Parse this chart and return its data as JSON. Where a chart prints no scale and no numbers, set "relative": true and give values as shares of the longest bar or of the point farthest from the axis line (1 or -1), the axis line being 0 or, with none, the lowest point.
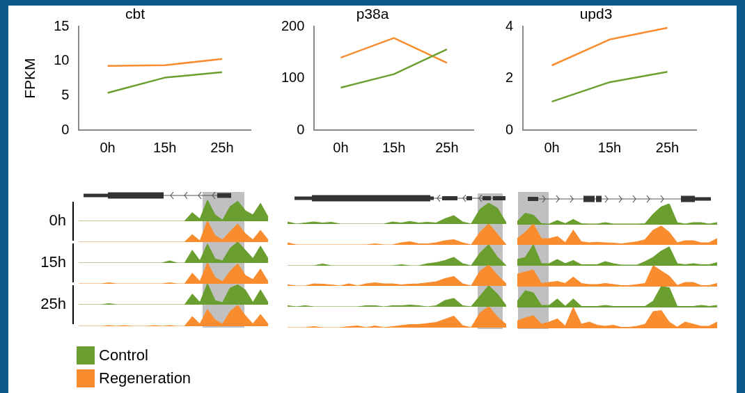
{
  "chart_data": [
    {
      "type": "line",
      "title": "cbt",
      "ylabel": "FPKM",
      "categories": [
        "0h",
        "15h",
        "25h"
      ],
      "ylim": [
        0,
        15
      ],
      "yticks": [
        0,
        5,
        10,
        15
      ],
      "legend": "bottom left",
      "series": [
        {
          "name": "Control",
          "color": "#6a9e2f",
          "values": [
            5.4,
            7.6,
            8.4
          ]
        },
        {
          "name": "Regeneration",
          "color": "#f98c2e",
          "values": [
            9.3,
            9.4,
            10.3
          ]
        }
      ]
    },
    {
      "type": "line",
      "title": "p38a",
      "categories": [
        "0h",
        "15h",
        "25h"
      ],
      "ylim": [
        0,
        200
      ],
      "yticks": [
        0,
        100,
        200
      ],
      "series": [
        {
          "color": "#6a9e2f",
          "values": [
            82,
            108,
            156
          ]
        },
        {
          "color": "#f98c2e",
          "values": [
            140,
            178,
            130
          ]
        }
      ]
    },
    {
      "type": "line",
      "title": "upd3",
      "categories": [
        "0h",
        "15h",
        "25h"
      ],
      "ylim": [
        0,
        4
      ],
      "yticks": [
        0,
        2,
        4
      ],
      "series": [
        {
          "color": "#6a9e2f",
          "values": [
            1.1,
            1.85,
            2.25
          ]
        },
        {
          "color": "#f98c2e",
          "values": [
            2.5,
            3.5,
            3.95
          ]
        }
      ]
    },
    {
      "type": "area",
      "relative": true,
      "tick_labels": false,
      "ylabel": "0h",
      "categories": [
        null,
        null,
        null,
        null,
        null,
        null,
        null,
        null,
        null,
        null,
        null,
        null,
        null,
        null,
        null,
        null,
        null,
        null,
        null,
        null,
        null,
        null,
        null,
        null,
        null,
        null
      ],
      "series": [
        {
          "color": "#6a9e2f",
          "values": [
            0,
            0,
            0,
            0,
            0,
            0,
            0,
            0,
            0,
            0,
            0,
            0,
            0,
            0,
            0,
            0.4,
            0.1,
            1,
            0.3,
            0.05,
            0.7,
            0.95,
            0.5,
            0.3,
            0.85,
            0.2
          ]
        }
      ]
    },
    {
      "type": "area",
      "relative": true,
      "tick_labels": false,
      "categories": [
        null,
        null,
        null,
        null,
        null,
        null,
        null,
        null,
        null,
        null,
        null,
        null,
        null,
        null,
        null,
        null,
        null,
        null,
        null,
        null,
        null,
        null,
        null,
        null,
        null,
        null
      ],
      "series": [
        {
          "color": "#f98c2e",
          "values": [
            0,
            0,
            0,
            0,
            0,
            0,
            0,
            0,
            0,
            0,
            0,
            0,
            0,
            0,
            0,
            0.35,
            0.05,
            1,
            0.3,
            0.1,
            0.5,
            0.85,
            0.4,
            0.1,
            0.55,
            0.1
          ]
        }
      ]
    },
    {
      "type": "area",
      "relative": true,
      "tick_labels": false,
      "ylabel": "15h",
      "categories": [
        null,
        null,
        null,
        null,
        null,
        null,
        null,
        null,
        null,
        null,
        null,
        null,
        null,
        null,
        null,
        null,
        null,
        null,
        null,
        null,
        null,
        null,
        null,
        null,
        null,
        null
      ],
      "series": [
        {
          "color": "#6a9e2f",
          "values": [
            0,
            0,
            0,
            0,
            0,
            0,
            0,
            0,
            0,
            0,
            0,
            0,
            0.1,
            0,
            0,
            0.6,
            0.1,
            0.9,
            0.2,
            0.1,
            0.7,
            1,
            0.6,
            0.2,
            0.8,
            0.2
          ]
        }
      ]
    },
    {
      "type": "area",
      "relative": true,
      "tick_labels": false,
      "categories": [
        null,
        null,
        null,
        null,
        null,
        null,
        null,
        null,
        null,
        null,
        null,
        null,
        null,
        null,
        null,
        null,
        null,
        null,
        null,
        null,
        null,
        null,
        null,
        null,
        null,
        null
      ],
      "series": [
        {
          "color": "#f98c2e",
          "values": [
            0,
            0,
            0,
            0,
            0.05,
            0,
            0,
            0,
            0,
            0,
            0,
            0,
            0.05,
            0,
            0,
            0.5,
            0.1,
            1,
            0.3,
            0.1,
            0.6,
            0.95,
            0.4,
            0.2,
            0.7,
            0.1
          ]
        }
      ]
    },
    {
      "type": "area",
      "relative": true,
      "tick_labels": false,
      "ylabel": "25h",
      "categories": [
        null,
        null,
        null,
        null,
        null,
        null,
        null,
        null,
        null,
        null,
        null,
        null,
        null,
        null,
        null,
        null,
        null,
        null,
        null,
        null,
        null,
        null,
        null,
        null,
        null,
        null
      ],
      "series": [
        {
          "color": "#6a9e2f",
          "values": [
            0,
            0,
            0,
            0,
            0.05,
            0,
            0,
            0,
            0,
            0,
            0,
            0,
            0,
            0,
            0,
            0.5,
            0.1,
            1,
            0.2,
            0.1,
            0.8,
            0.95,
            0.7,
            0.1,
            0.7,
            0.1
          ]
        }
      ]
    },
    {
      "type": "area",
      "relative": true,
      "tick_labels": false,
      "categories": [
        null,
        null,
        null,
        null,
        null,
        null,
        null,
        null,
        null,
        null,
        null,
        null,
        null,
        null,
        null,
        null,
        null,
        null,
        null,
        null,
        null,
        null,
        null,
        null,
        null,
        null
      ],
      "series": [
        {
          "color": "#f98c2e",
          "values": [
            0,
            0,
            0,
            0,
            0.03,
            0,
            0.03,
            0,
            0,
            0,
            0.03,
            0,
            0.03,
            0,
            0,
            0.45,
            0.1,
            0.8,
            0.3,
            0.1,
            0.7,
            1,
            0.5,
            0.1,
            0.55,
            0.1
          ]
        }
      ]
    },
    {
      "type": "area",
      "relative": true,
      "tick_labels": false,
      "categories": [
        null,
        null,
        null,
        null,
        null,
        null,
        null,
        null,
        null,
        null,
        null,
        null,
        null,
        null,
        null,
        null,
        null,
        null,
        null,
        null,
        null,
        null,
        null,
        null,
        null,
        null
      ],
      "series": [
        {
          "color": "#6a9e2f",
          "values": [
            0.1,
            0,
            0.05,
            0.1,
            0.05,
            0.08,
            0,
            0,
            0,
            0,
            0,
            0,
            0.1,
            0.05,
            0.12,
            0.05,
            0.08,
            0.05,
            0.25,
            0.4,
            0.1,
            0,
            0.7,
            1,
            0.75,
            0.05
          ]
        }
      ]
    },
    {
      "type": "area",
      "relative": true,
      "tick_labels": false,
      "categories": [
        null,
        null,
        null,
        null,
        null,
        null,
        null,
        null,
        null,
        null,
        null,
        null,
        null,
        null,
        null,
        null,
        null,
        null,
        null,
        null,
        null,
        null,
        null,
        null,
        null,
        null
      ],
      "series": [
        {
          "color": "#f98c2e",
          "values": [
            0.1,
            0,
            0,
            0,
            0,
            0,
            0,
            0,
            0,
            0,
            0.05,
            0,
            0,
            0.1,
            0.15,
            0.05,
            0.05,
            0.1,
            0.2,
            0.25,
            0.1,
            0,
            0.6,
            1,
            0.5,
            0
          ]
        }
      ]
    },
    {
      "type": "area",
      "relative": true,
      "tick_labels": false,
      "categories": [
        null,
        null,
        null,
        null,
        null,
        null,
        null,
        null,
        null,
        null,
        null,
        null,
        null,
        null,
        null,
        null,
        null,
        null,
        null,
        null,
        null,
        null,
        null,
        null,
        null,
        null
      ],
      "series": [
        {
          "color": "#6a9e2f",
          "values": [
            0,
            0,
            0,
            0,
            0.08,
            0,
            0,
            0,
            0,
            0,
            0,
            0,
            0,
            0.05,
            0,
            0,
            0.1,
            0.15,
            0.25,
            0.4,
            0.1,
            0,
            0.6,
            1,
            0.4,
            0
          ]
        }
      ]
    },
    {
      "type": "area",
      "relative": true,
      "tick_labels": false,
      "categories": [
        null,
        null,
        null,
        null,
        null,
        null,
        null,
        null,
        null,
        null,
        null,
        null,
        null,
        null,
        null,
        null,
        null,
        null,
        null,
        null,
        null,
        null,
        null,
        null,
        null,
        null
      ],
      "series": [
        {
          "color": "#f98c2e",
          "values": [
            0.05,
            0,
            0,
            0.1,
            0.08,
            0.05,
            0,
            0.1,
            0,
            0.1,
            0.15,
            0.1,
            0.1,
            0.05,
            0.08,
            0.1,
            0.15,
            0.2,
            0.35,
            0.45,
            0.1,
            0,
            0.7,
            1,
            0.5,
            0.1
          ]
        }
      ]
    },
    {
      "type": "area",
      "relative": true,
      "tick_labels": false,
      "categories": [
        null,
        null,
        null,
        null,
        null,
        null,
        null,
        null,
        null,
        null,
        null,
        null,
        null,
        null,
        null,
        null,
        null,
        null,
        null,
        null,
        null,
        null,
        null,
        null,
        null,
        null
      ],
      "series": [
        {
          "color": "#6a9e2f",
          "values": [
            0.05,
            0,
            0.05,
            0,
            0,
            0,
            0,
            0,
            0,
            0.05,
            0.05,
            0,
            0.05,
            0.05,
            0.08,
            0.05,
            0,
            0.05,
            0.3,
            0.4,
            0.05,
            0,
            0.5,
            1,
            0.6,
            0.05
          ]
        }
      ]
    },
    {
      "type": "area",
      "relative": true,
      "tick_labels": false,
      "categories": [
        null,
        null,
        null,
        null,
        null,
        null,
        null,
        null,
        null,
        null,
        null,
        null,
        null,
        null,
        null,
        null,
        null,
        null,
        null,
        null,
        null,
        null,
        null,
        null,
        null,
        null
      ],
      "series": [
        {
          "color": "#f98c2e",
          "values": [
            0,
            0,
            0,
            0.05,
            0,
            0,
            0,
            0.05,
            0.08,
            0,
            0.08,
            0,
            0.05,
            0.1,
            0.15,
            0.15,
            0.2,
            0.25,
            0.4,
            0.55,
            0.1,
            0,
            0.7,
            1,
            0.5,
            0.15
          ]
        }
      ]
    },
    {
      "type": "area",
      "relative": true,
      "tick_labels": false,
      "categories": [
        null,
        null,
        null,
        null,
        null,
        null,
        null,
        null,
        null,
        null,
        null,
        null,
        null,
        null,
        null,
        null,
        null,
        null,
        null,
        null,
        null,
        null,
        null,
        null,
        null,
        null
      ],
      "series": [
        {
          "color": "#6a9e2f",
          "values": [
            0.15,
            0.55,
            0.45,
            0.05,
            0.03,
            0.2,
            0.05,
            0.25,
            0.05,
            0.03,
            0.03,
            0.1,
            0.03,
            0.03,
            0.03,
            0.03,
            0.05,
            0.5,
            0.85,
            1,
            0.1,
            0.03,
            0.1,
            0.1,
            0.03,
            0.1
          ]
        }
      ]
    },
    {
      "type": "area",
      "relative": true,
      "tick_labels": false,
      "categories": [
        null,
        null,
        null,
        null,
        null,
        null,
        null,
        null,
        null,
        null,
        null,
        null,
        null,
        null,
        null,
        null,
        null,
        null,
        null,
        null,
        null,
        null,
        null,
        null,
        null,
        null
      ],
      "series": [
        {
          "color": "#f98c2e",
          "values": [
            0.3,
            0.6,
            1,
            0.3,
            0.3,
            0.4,
            0.1,
            0.7,
            0.15,
            0.1,
            0.12,
            0.1,
            0.08,
            0.05,
            0.1,
            0.15,
            0.25,
            0.7,
            0.9,
            0.6,
            0.1,
            0.2,
            0.2,
            0.1,
            0.1,
            0.3
          ]
        }
      ]
    },
    {
      "type": "area",
      "relative": true,
      "tick_labels": false,
      "categories": [
        null,
        null,
        null,
        null,
        null,
        null,
        null,
        null,
        null,
        null,
        null,
        null,
        null,
        null,
        null,
        null,
        null,
        null,
        null,
        null,
        null,
        null,
        null,
        null,
        null,
        null
      ],
      "series": [
        {
          "color": "#6a9e2f",
          "values": [
            0.3,
            0.4,
            1,
            0.1,
            0.1,
            0.3,
            0.1,
            0.25,
            0.05,
            0.05,
            0.05,
            0.2,
            0.1,
            0.03,
            0.03,
            0.03,
            0.2,
            0.4,
            0.7,
            0.9,
            0.1,
            0.05,
            0.1,
            0.05,
            0.05,
            0.15
          ]
        }
      ]
    },
    {
      "type": "area",
      "relative": true,
      "tick_labels": false,
      "categories": [
        null,
        null,
        null,
        null,
        null,
        null,
        null,
        null,
        null,
        null,
        null,
        null,
        null,
        null,
        null,
        null,
        null,
        null,
        null,
        null,
        null,
        null,
        null,
        null,
        null,
        null
      ],
      "series": [
        {
          "color": "#f98c2e",
          "values": [
            0.6,
            0.7,
            0.8,
            0.15,
            0.2,
            0.25,
            0.15,
            0.45,
            0.15,
            0.1,
            0.1,
            0.15,
            0.1,
            0.05,
            0.05,
            0.1,
            0.15,
            1,
            0.75,
            0.5,
            0.05,
            0.2,
            0.2,
            0.05,
            0.05,
            0.15
          ]
        }
      ]
    },
    {
      "type": "area",
      "relative": true,
      "tick_labels": false,
      "categories": [
        null,
        null,
        null,
        null,
        null,
        null,
        null,
        null,
        null,
        null,
        null,
        null,
        null,
        null,
        null,
        null,
        null,
        null,
        null,
        null,
        null,
        null,
        null,
        null,
        null,
        null
      ],
      "series": [
        {
          "color": "#6a9e2f",
          "values": [
            0.3,
            0.8,
            0.7,
            0.1,
            0.1,
            0.4,
            0.05,
            0.4,
            0.05,
            0.05,
            0.05,
            0.1,
            0.05,
            0.05,
            0.05,
            0.05,
            0.05,
            0.3,
            1,
            0.95,
            0.05,
            0.05,
            0.05,
            0.1,
            0.05,
            0.1
          ]
        }
      ]
    },
    {
      "type": "area",
      "relative": true,
      "tick_labels": false,
      "categories": [
        null,
        null,
        null,
        null,
        null,
        null,
        null,
        null,
        null,
        null,
        null,
        null,
        null,
        null,
        null,
        null,
        null,
        null,
        null,
        null,
        null,
        null,
        null,
        null,
        null,
        null
      ],
      "series": [
        {
          "color": "#f98c2e",
          "values": [
            0.35,
            0.5,
            0.6,
            0.2,
            0.3,
            0.45,
            0.1,
            1,
            0.2,
            0.3,
            0.15,
            0.1,
            0.15,
            0.05,
            0.05,
            0.1,
            0.2,
            0.8,
            0.85,
            0.3,
            0.05,
            0.3,
            0.2,
            0.1,
            0.1,
            0.3
          ]
        }
      ]
    }
  ]
}
